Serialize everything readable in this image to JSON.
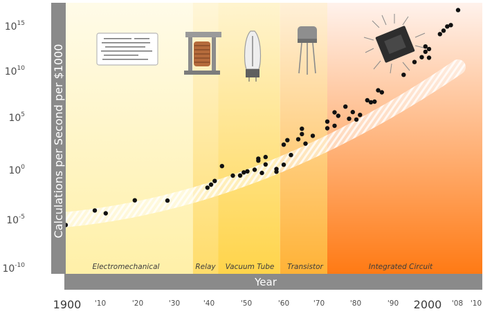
{
  "chart_data": {
    "type": "scatter",
    "xlabel": "Year",
    "ylabel": "Calculations per Second per $1000",
    "log_y": true,
    "xlim": [
      1900,
      2010
    ],
    "ylim_exponents": [
      -10,
      15
    ],
    "x_tick_labels": [
      {
        "x": 1900,
        "label": "1900",
        "style": "major"
      },
      {
        "x": 1910,
        "label": "'10",
        "style": "minor"
      },
      {
        "x": 1920,
        "label": "'20",
        "style": "minor"
      },
      {
        "x": 1930,
        "label": "'30",
        "style": "minor"
      },
      {
        "x": 1940,
        "label": "'40",
        "style": "minor"
      },
      {
        "x": 1950,
        "label": "'50",
        "style": "minor"
      },
      {
        "x": 1960,
        "label": "'60",
        "style": "minor"
      },
      {
        "x": 1970,
        "label": "'70",
        "style": "minor"
      },
      {
        "x": 1980,
        "label": "'80",
        "style": "minor"
      },
      {
        "x": 1990,
        "label": "'90",
        "style": "minor"
      },
      {
        "x": 2000,
        "label": "2000",
        "style": "major"
      },
      {
        "x": 2008,
        "label": "'08",
        "style": "minor"
      },
      {
        "x": 2010,
        "label": "'10",
        "style": "minor"
      }
    ],
    "y_tick_labels": [
      {
        "base": "10",
        "exp": "15"
      },
      {
        "base": "10",
        "exp": "10"
      },
      {
        "base": "10",
        "exp": "5"
      },
      {
        "base": "10",
        "exp": "0"
      },
      {
        "base": "10",
        "exp": "-5"
      },
      {
        "base": "10",
        "exp": "-10"
      }
    ],
    "eras": [
      {
        "name": "Electromechanical",
        "start": 1900,
        "end": 1935,
        "color_top": "#fffbe8",
        "color_bottom": "#fff0a8"
      },
      {
        "name": "Relay",
        "start": 1935,
        "end": 1942,
        "color_top": "#fff6d8",
        "color_bottom": "#ffdc6a"
      },
      {
        "name": "Vacuum Tube",
        "start": 1942,
        "end": 1959,
        "color_top": "#fff4cf",
        "color_bottom": "#ffd44a"
      },
      {
        "name": "Transistor",
        "start": 1959,
        "end": 1972,
        "color_top": "#fff0d8",
        "color_bottom": "#ffb236"
      },
      {
        "name": "Integrated Circuit",
        "start": 1972,
        "end": 2010,
        "color_top": "#fff2ec",
        "color_bottom": "#ff7a14"
      }
    ],
    "trend_exponents": {
      "start": -5.2,
      "end": 10.3,
      "curvature": 0.75
    },
    "points": [
      {
        "x": 1900,
        "y": -6.0
      },
      {
        "x": 1908,
        "y": -4.0
      },
      {
        "x": 1911,
        "y": -4.5
      },
      {
        "x": 1919,
        "y": -2.8
      },
      {
        "x": 1928,
        "y": -3.2
      },
      {
        "x": 1939,
        "y": -1.8
      },
      {
        "x": 1940,
        "y": -1.4
      },
      {
        "x": 1941,
        "y": -0.9
      },
      {
        "x": 1943,
        "y": 1.2
      },
      {
        "x": 1946,
        "y": -0.4
      },
      {
        "x": 1948,
        "y": -0.5
      },
      {
        "x": 1949,
        "y": -0.1
      },
      {
        "x": 1950,
        "y": 0.0
      },
      {
        "x": 1952,
        "y": 0.1
      },
      {
        "x": 1953,
        "y": 1.7
      },
      {
        "x": 1953,
        "y": 1.4
      },
      {
        "x": 1954,
        "y": -0.5
      },
      {
        "x": 1955,
        "y": 0.7
      },
      {
        "x": 1955,
        "y": 1.8
      },
      {
        "x": 1958,
        "y": -0.2
      },
      {
        "x": 1958,
        "y": -0.6
      },
      {
        "x": 1960,
        "y": 0.3
      },
      {
        "x": 1960,
        "y": 3.3
      },
      {
        "x": 1961,
        "y": 3.9
      },
      {
        "x": 1962,
        "y": 1.6
      },
      {
        "x": 1964,
        "y": 3.8
      },
      {
        "x": 1965,
        "y": 4.5
      },
      {
        "x": 1965,
        "y": 5.3
      },
      {
        "x": 1966,
        "y": 3.0
      },
      {
        "x": 1968,
        "y": 4.0
      },
      {
        "x": 1972,
        "y": 5.8
      },
      {
        "x": 1972,
        "y": 4.8
      },
      {
        "x": 1974,
        "y": 7.0
      },
      {
        "x": 1974,
        "y": 5.0
      },
      {
        "x": 1975,
        "y": 6.4
      },
      {
        "x": 1977,
        "y": 7.6
      },
      {
        "x": 1978,
        "y": 5.7
      },
      {
        "x": 1979,
        "y": 6.6
      },
      {
        "x": 1980,
        "y": 5.4
      },
      {
        "x": 1981,
        "y": 6.0
      },
      {
        "x": 1983,
        "y": 8.0
      },
      {
        "x": 1984,
        "y": 7.6
      },
      {
        "x": 1985,
        "y": 7.6
      },
      {
        "x": 1986,
        "y": 9.2
      },
      {
        "x": 1987,
        "y": 8.8
      },
      {
        "x": 1993,
        "y": 10.8
      },
      {
        "x": 1996,
        "y": 12.4
      },
      {
        "x": 1998,
        "y": 12.9
      },
      {
        "x": 1999,
        "y": 13.6
      },
      {
        "x": 1999,
        "y": 14.4
      },
      {
        "x": 2000,
        "y": 12.6
      },
      {
        "x": 2000,
        "y": 13.9
      },
      {
        "x": 2003,
        "y": 15.8
      },
      {
        "x": 2004,
        "y": 16.2
      },
      {
        "x": 2005,
        "y": 16.7
      },
      {
        "x": 2006,
        "y": 16.8
      },
      {
        "x": 2008,
        "y": 18.8
      }
    ]
  }
}
